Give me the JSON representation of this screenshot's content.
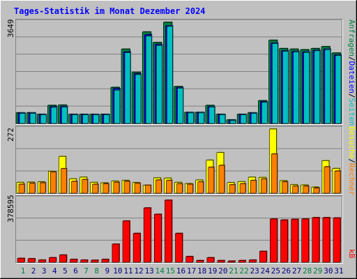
{
  "title": "Tages-Statistik im Monat Dezember 2024",
  "colors": {
    "background": "#C0C0C0",
    "title": "#0000FF",
    "anfragen": "#008040",
    "dateien": "#0000FF",
    "seiten": "#00C0C0",
    "besuche": "#FFFF00",
    "rechner": "#FF8000",
    "kb": "#FF0000",
    "weekend_day": "#008040"
  },
  "chart_data": [
    {
      "type": "bar",
      "title": "Tages-Statistik im Monat Dezember 2024",
      "panel": "requests",
      "ymax_label": "3649",
      "ylim": [
        0,
        3649
      ],
      "grid": true,
      "legend": "right, vertical",
      "categories": [
        "1",
        "2",
        "3",
        "4",
        "5",
        "6",
        "7",
        "8",
        "9",
        "10",
        "11",
        "12",
        "13",
        "14",
        "15",
        "16",
        "17",
        "18",
        "19",
        "20",
        "21",
        "22",
        "23",
        "24",
        "25",
        "26",
        "27",
        "28",
        "29",
        "30",
        "31"
      ],
      "series": [
        {
          "name": "Anfragen",
          "color": "#008040",
          "values": [
            385,
            385,
            330,
            650,
            660,
            330,
            330,
            330,
            330,
            1300,
            2680,
            1840,
            3300,
            2920,
            3649,
            1330,
            400,
            400,
            650,
            330,
            130,
            330,
            385,
            820,
            3000,
            2700,
            2680,
            2660,
            2700,
            2770,
            2540
          ]
        },
        {
          "name": "Dateien",
          "color": "#0000FF",
          "values": [
            370,
            370,
            320,
            600,
            610,
            320,
            320,
            320,
            320,
            1250,
            2580,
            1790,
            3200,
            2850,
            3520,
            1290,
            390,
            390,
            600,
            320,
            110,
            320,
            370,
            780,
            2900,
            2620,
            2600,
            2580,
            2640,
            2680,
            2470
          ]
        },
        {
          "name": "Seiten",
          "color": "#00C0C0",
          "values": [
            360,
            360,
            310,
            580,
            590,
            310,
            310,
            310,
            310,
            1200,
            2550,
            1760,
            3150,
            2810,
            3500,
            1270,
            380,
            380,
            590,
            310,
            100,
            310,
            360,
            760,
            2880,
            2600,
            2580,
            2560,
            2620,
            2660,
            2450
          ]
        }
      ]
    },
    {
      "type": "bar",
      "panel": "visits",
      "ymax_label": "272",
      "ylim": [
        0,
        272
      ],
      "grid": true,
      "legend": "right, vertical",
      "categories": [
        "1",
        "2",
        "3",
        "4",
        "5",
        "6",
        "7",
        "8",
        "9",
        "10",
        "11",
        "12",
        "13",
        "14",
        "15",
        "16",
        "17",
        "18",
        "19",
        "20",
        "21",
        "22",
        "23",
        "24",
        "25",
        "26",
        "27",
        "28",
        "29",
        "30",
        "31"
      ],
      "series": [
        {
          "name": "Besuche",
          "color": "#FFFF00",
          "values": [
            46,
            47,
            48,
            93,
            156,
            61,
            68,
            46,
            44,
            51,
            54,
            45,
            34,
            65,
            64,
            46,
            41,
            56,
            140,
            172,
            45,
            49,
            68,
            67,
            272,
            53,
            36,
            35,
            26,
            138,
            105
          ]
        },
        {
          "name": "Rechner",
          "color": "#FF8000",
          "values": [
            38,
            42,
            44,
            90,
            104,
            50,
            58,
            38,
            40,
            46,
            50,
            42,
            34,
            56,
            54,
            40,
            38,
            48,
            110,
            118,
            36,
            40,
            54,
            60,
            166,
            48,
            30,
            30,
            22,
            112,
            94
          ]
        }
      ]
    },
    {
      "type": "bar",
      "panel": "traffic",
      "ymax_label": "378595",
      "ylim": [
        0,
        378595
      ],
      "grid": true,
      "legend": "right, vertical",
      "categories": [
        "1",
        "2",
        "3",
        "4",
        "5",
        "6",
        "7",
        "8",
        "9",
        "10",
        "11",
        "12",
        "13",
        "14",
        "15",
        "16",
        "17",
        "18",
        "19",
        "20",
        "21",
        "22",
        "23",
        "24",
        "25",
        "26",
        "27",
        "28",
        "29",
        "30",
        "31"
      ],
      "series": [
        {
          "name": "kB",
          "color": "#FF0000",
          "values": [
            23000,
            21000,
            13000,
            27000,
            43000,
            17000,
            13000,
            12000,
            17000,
            108000,
            246000,
            172000,
            324000,
            286000,
            370000,
            172000,
            34000,
            10000,
            27000,
            10000,
            7000,
            10000,
            13000,
            65000,
            258000,
            252000,
            256000,
            258000,
            266000,
            266000,
            264000
          ]
        }
      ]
    }
  ],
  "days": [
    {
      "label": "1",
      "weekend": true
    },
    {
      "label": "2",
      "weekend": false
    },
    {
      "label": "3",
      "weekend": false
    },
    {
      "label": "4",
      "weekend": false
    },
    {
      "label": "5",
      "weekend": false
    },
    {
      "label": "6",
      "weekend": false
    },
    {
      "label": "7",
      "weekend": true
    },
    {
      "label": "8",
      "weekend": true
    },
    {
      "label": "9",
      "weekend": false
    },
    {
      "label": "10",
      "weekend": false
    },
    {
      "label": "11",
      "weekend": false
    },
    {
      "label": "12",
      "weekend": false
    },
    {
      "label": "13",
      "weekend": false
    },
    {
      "label": "14",
      "weekend": true
    },
    {
      "label": "15",
      "weekend": true
    },
    {
      "label": "16",
      "weekend": false
    },
    {
      "label": "17",
      "weekend": false
    },
    {
      "label": "18",
      "weekend": false
    },
    {
      "label": "19",
      "weekend": false
    },
    {
      "label": "20",
      "weekend": false
    },
    {
      "label": "21",
      "weekend": true
    },
    {
      "label": "22",
      "weekend": true
    },
    {
      "label": "23",
      "weekend": false
    },
    {
      "label": "24",
      "weekend": false
    },
    {
      "label": "25",
      "weekend": false
    },
    {
      "label": "26",
      "weekend": false
    },
    {
      "label": "27",
      "weekend": false
    },
    {
      "label": "28",
      "weekend": true
    },
    {
      "label": "29",
      "weekend": true
    },
    {
      "label": "30",
      "weekend": false
    },
    {
      "label": "31",
      "weekend": false
    }
  ],
  "legend": {
    "requests": [
      {
        "text": "Anfragen",
        "color": "#008040"
      },
      {
        "text": "/",
        "color": "#000000"
      },
      {
        "text": "Dateien",
        "color": "#0000FF"
      },
      {
        "text": "/",
        "color": "#000000"
      },
      {
        "text": "Seiten",
        "color": "#00C0C0"
      }
    ],
    "visits": [
      {
        "text": "Besuche",
        "color": "#FFFF00"
      },
      {
        "text": "/",
        "color": "#000000"
      },
      {
        "text": "Rechner",
        "color": "#FF8000"
      }
    ],
    "traffic": [
      {
        "text": "kB",
        "color": "#FF0000"
      }
    ]
  }
}
